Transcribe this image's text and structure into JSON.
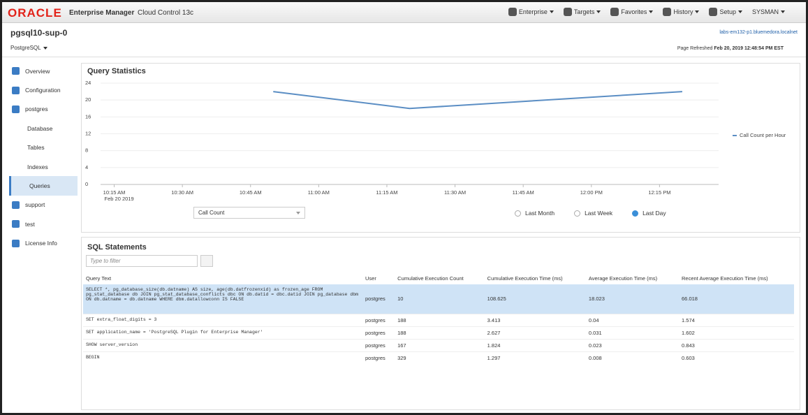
{
  "header": {
    "brand": "ORACLE",
    "product": "Enterprise Manager",
    "product_sub": "Cloud Control 13c",
    "menus": [
      "Enterprise",
      "Targets",
      "Favorites",
      "History",
      "Setup"
    ],
    "user": "SYSMAN"
  },
  "target": {
    "name": "pgsql10-sup-0",
    "type_menu": "PostgreSQL",
    "host": "labs-em132-p1.bluemedora.localnet",
    "refreshed_label": "Page Refreshed",
    "refreshed_time": "Feb 20, 2019 12:48:54 PM EST"
  },
  "sidebar": {
    "items": [
      {
        "label": "Overview"
      },
      {
        "label": "Configuration"
      },
      {
        "label": "postgres",
        "children": [
          {
            "label": "Database"
          },
          {
            "label": "Tables"
          },
          {
            "label": "Indexes"
          },
          {
            "label": "Queries",
            "selected": true
          }
        ]
      },
      {
        "label": "support"
      },
      {
        "label": "test"
      },
      {
        "label": "License Info"
      }
    ]
  },
  "chart_data": {
    "type": "line",
    "title": "Query Statistics",
    "x": [
      "10:50",
      "11:20",
      "12:20"
    ],
    "series": [
      {
        "name": "Call Count per Hour",
        "color": "#5b8ec4",
        "values": [
          22,
          18,
          22
        ]
      }
    ],
    "xlim": [
      "10:12",
      "12:28"
    ],
    "xticks": [
      {
        "value": "10:15",
        "label": "10:15 AM"
      },
      {
        "value": "10:30",
        "label": "10:30 AM"
      },
      {
        "value": "10:45",
        "label": "10:45 AM"
      },
      {
        "value": "11:00",
        "label": "11:00 AM"
      },
      {
        "value": "11:15",
        "label": "11:15 AM"
      },
      {
        "value": "11:30",
        "label": "11:30 AM"
      },
      {
        "value": "11:45",
        "label": "11:45 AM"
      },
      {
        "value": "12:00",
        "label": "12:00 PM"
      },
      {
        "value": "12:15",
        "label": "12:15 PM"
      }
    ],
    "x_date_label": "Feb 20 2019",
    "ylim": [
      0,
      24
    ],
    "yticks": [
      0,
      4,
      8,
      12,
      16,
      20,
      24
    ],
    "grid": true,
    "legend": "right"
  },
  "controls": {
    "metric": "Call Count",
    "ranges": [
      "Last Month",
      "Last Week",
      "Last Day"
    ],
    "selected_range": 2
  },
  "sql": {
    "title": "SQL Statements",
    "filter_placeholder": "Type to filter",
    "columns": [
      "Query Text",
      "User",
      "Cumulative Execution Count",
      "Cumulative Execution Time (ms)",
      "Average Execution Time (ms)",
      "Recent Average Execution Time (ms)"
    ],
    "rows": [
      [
        "SELECT *, pg_database_size(db.datname) AS size, age(db.datfrozenxid) as frozen_age FROM pg_stat_database db JOIN pg_stat_database_conflicts dbc ON db.datid = dbc.datid JOIN pg_database dbm ON db.datname = db.datname WHERE dbm.datallowconn IS FALSE",
        "postgres",
        "10",
        "108.625",
        "18.023",
        "66.018"
      ],
      [
        "SET extra_float_digits = 3",
        "postgres",
        "188",
        "3.413",
        "0.04",
        "1.574"
      ],
      [
        "SET application_name = 'PostgreSQL Plugin for Enterprise Manager'",
        "postgres",
        "188",
        "2.627",
        "0.031",
        "1.602"
      ],
      [
        "SHOW server_version",
        "postgres",
        "167",
        "1.824",
        "0.023",
        "0.843"
      ],
      [
        "BEGIN",
        "postgres",
        "329",
        "1.297",
        "0.008",
        "0.603"
      ]
    ],
    "selected_row": 0
  }
}
